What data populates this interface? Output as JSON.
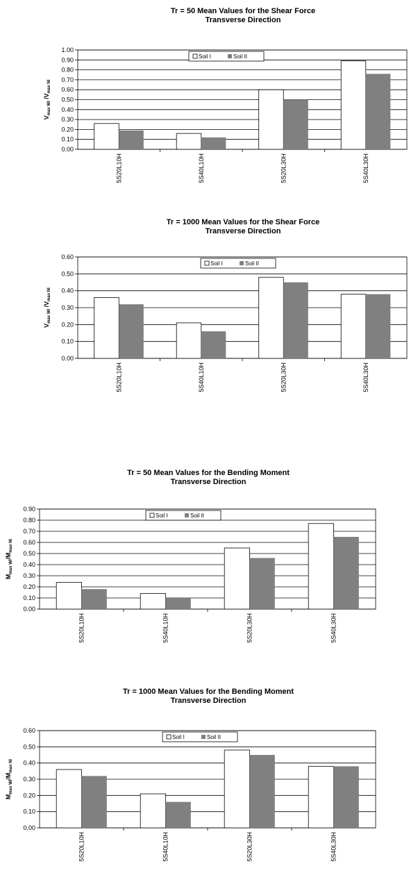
{
  "legend": {
    "soil1": "Soil I",
    "soil2": "Soil II"
  },
  "colors": {
    "soil1": "#ffffff",
    "soil2": "#808080",
    "grid": "#000000"
  },
  "chart_data": [
    {
      "type": "bar",
      "title": "Tr = 50 Mean Values for the Shear Force",
      "subtitle": "Transverse Direction",
      "ylabel": {
        "main1": "V",
        "sub1": "max WI",
        "mid": " /V",
        "sub2": "max NI"
      },
      "categories": [
        "5S20L10H",
        "5S40L10H",
        "5S20L30H",
        "5S40L30H"
      ],
      "series": [
        {
          "name": "Soil I",
          "values": [
            0.26,
            0.16,
            0.6,
            0.89
          ]
        },
        {
          "name": "Soil II",
          "values": [
            0.19,
            0.12,
            0.5,
            0.76
          ]
        }
      ],
      "yticks": [
        "0.00",
        "0.10",
        "0.20",
        "0.30",
        "0.40",
        "0.50",
        "0.60",
        "0.70",
        "0.80",
        "0.90",
        "1.00"
      ],
      "ylim": [
        0,
        1.0
      ],
      "grid": true,
      "legend_position": "top-center"
    },
    {
      "type": "bar",
      "title": "Tr = 1000 Mean Values for the Shear Force",
      "subtitle": "Transverse Direction",
      "ylabel": {
        "main1": "V",
        "sub1": "max WI",
        "mid": " /V",
        "sub2": "max NI"
      },
      "categories": [
        "5S20L10H",
        "5S40L10H",
        "5S20L30H",
        "5S40L30H"
      ],
      "series": [
        {
          "name": "Soil I",
          "values": [
            0.36,
            0.21,
            0.48,
            0.38
          ]
        },
        {
          "name": "Soil II",
          "values": [
            0.32,
            0.16,
            0.45,
            0.38
          ]
        }
      ],
      "yticks": [
        "0.00",
        "0.10",
        "0.20",
        "0.30",
        "0.40",
        "0.50",
        "0.60"
      ],
      "ylim": [
        0,
        0.6
      ],
      "grid": true,
      "legend_position": "top-center"
    },
    {
      "type": "bar",
      "title": "Tr = 50 Mean Values for the Bending Moment",
      "subtitle": "Transverse Direction",
      "ylabel": {
        "main1": "M",
        "sub1": "max WI",
        "mid": "/M",
        "sub2": "max NI"
      },
      "categories": [
        "5S20L10H",
        "5S40L10H",
        "5S20L30H",
        "5S40L30H"
      ],
      "series": [
        {
          "name": "Soil I",
          "values": [
            0.24,
            0.14,
            0.55,
            0.77
          ]
        },
        {
          "name": "Soil II",
          "values": [
            0.18,
            0.1,
            0.46,
            0.65
          ]
        }
      ],
      "yticks": [
        "0.00",
        "0.10",
        "0.20",
        "0.30",
        "0.40",
        "0.50",
        "0.60",
        "0.70",
        "0.80",
        "0.90"
      ],
      "ylim": [
        0,
        0.9
      ],
      "grid": true,
      "legend_position": "top-center"
    },
    {
      "type": "bar",
      "title": "Tr = 1000 Mean Values for the Bending Moment",
      "subtitle": "Transverse Direction",
      "ylabel": {
        "main1": "M",
        "sub1": "max WI",
        "mid": "/M",
        "sub2": "max NI"
      },
      "categories": [
        "5S20L10H",
        "5S40L10H",
        "5S20L30H",
        "5S40L30H"
      ],
      "series": [
        {
          "name": "Soil I",
          "values": [
            0.36,
            0.21,
            0.48,
            0.38
          ]
        },
        {
          "name": "Soil II",
          "values": [
            0.32,
            0.16,
            0.45,
            0.38
          ]
        }
      ],
      "yticks": [
        "0.00",
        "0.10",
        "0.20",
        "0.30",
        "0.40",
        "0.50",
        "0.60"
      ],
      "ylim": [
        0,
        0.6
      ],
      "grid": true,
      "legend_position": "top-center"
    }
  ]
}
